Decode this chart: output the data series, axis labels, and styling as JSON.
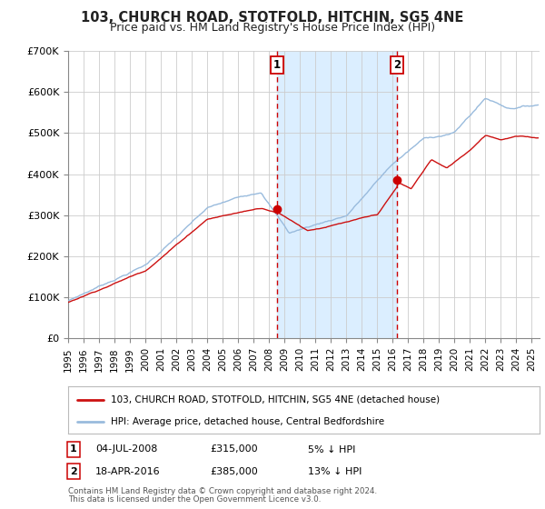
{
  "title": "103, CHURCH ROAD, STOTFOLD, HITCHIN, SG5 4NE",
  "subtitle": "Price paid vs. HM Land Registry's House Price Index (HPI)",
  "ylim": [
    0,
    700000
  ],
  "yticks": [
    0,
    100000,
    200000,
    300000,
    400000,
    500000,
    600000,
    700000
  ],
  "ytick_labels": [
    "£0",
    "£100K",
    "£200K",
    "£300K",
    "£400K",
    "£500K",
    "£600K",
    "£700K"
  ],
  "xlim_start": 1995.0,
  "xlim_end": 2025.5,
  "background_color": "#ffffff",
  "plot_bg_color": "#ffffff",
  "grid_color": "#cccccc",
  "shade_color": "#dbeeff",
  "sale1_x": 2008.504,
  "sale1_y": 315000,
  "sale2_x": 2016.297,
  "sale2_y": 385000,
  "sale_dot_color": "#cc0000",
  "legend_label_red": "103, CHURCH ROAD, STOTFOLD, HITCHIN, SG5 4NE (detached house)",
  "legend_label_blue": "HPI: Average price, detached house, Central Bedfordshire",
  "annotation1_label": "1",
  "annotation2_label": "2",
  "annotation1_date": "04-JUL-2008",
  "annotation1_price": "£315,000",
  "annotation1_pct": "5% ↓ HPI",
  "annotation2_date": "18-APR-2016",
  "annotation2_price": "£385,000",
  "annotation2_pct": "13% ↓ HPI",
  "footer1": "Contains HM Land Registry data © Crown copyright and database right 2024.",
  "footer2": "This data is licensed under the Open Government Licence v3.0.",
  "red_line_color": "#cc1111",
  "blue_line_color": "#99bbdd",
  "title_fontsize": 10.5,
  "subtitle_fontsize": 9.0
}
